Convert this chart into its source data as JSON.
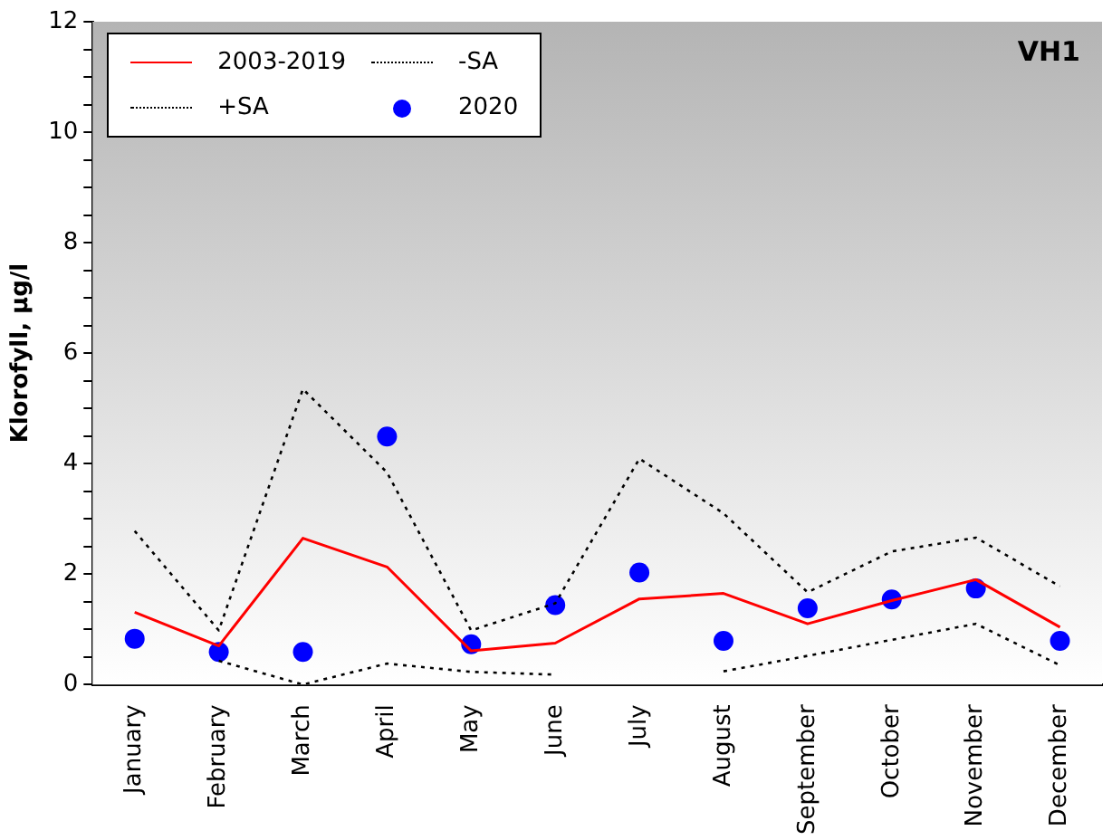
{
  "chart_data": {
    "type": "line",
    "ylabel": "Klorofyll, µg/l",
    "annotations": [
      "VH1"
    ],
    "categories": [
      "January",
      "February",
      "March",
      "April",
      "May",
      "June",
      "July",
      "August",
      "September",
      "October",
      "November",
      "December"
    ],
    "series": [
      {
        "name": "2003-2019",
        "color": "#ff0000",
        "line_style": "solid",
        "marker": "none",
        "values": [
          1.31,
          0.7,
          2.65,
          2.13,
          0.61,
          0.75,
          1.55,
          1.65,
          1.1,
          1.52,
          1.9,
          1.04
        ]
      },
      {
        "name": "-SA",
        "color": "#000000",
        "line_style": "dotted",
        "marker": "none",
        "values": [
          null,
          0.43,
          0,
          0.38,
          0.23,
          0.18,
          null,
          0.24,
          0.52,
          0.81,
          1.1,
          0.35
        ]
      },
      {
        "name": "+SA",
        "color": "#000000",
        "line_style": "dotted",
        "marker": "none",
        "values": [
          2.78,
          0.98,
          5.35,
          3.84,
          0.98,
          1.47,
          4.09,
          3.1,
          1.67,
          2.41,
          2.66,
          1.78
        ]
      },
      {
        "name": "2020",
        "type": "scatter",
        "color": "#0000ff",
        "marker": "circle",
        "values": [
          0.83,
          0.59,
          0.59,
          4.49,
          0.73,
          1.44,
          2.03,
          0.79,
          1.38,
          1.54,
          1.74,
          0.79
        ]
      }
    ],
    "ylim": [
      0,
      12
    ],
    "yticks": [
      0,
      {
        "value": 0.5,
        "label": null
      },
      {
        "value": 1,
        "label": null
      },
      {
        "value": 1.5,
        "label": null
      },
      2,
      {
        "value": 2.5,
        "label": null
      },
      {
        "value": 3,
        "label": null
      },
      {
        "value": 3.5,
        "label": null
      },
      4,
      {
        "value": 4.5,
        "label": null
      },
      {
        "value": 5,
        "label": null
      },
      {
        "value": 5.5,
        "label": null
      },
      6,
      {
        "value": 6.5,
        "label": null
      },
      {
        "value": 7,
        "label": null
      },
      {
        "value": 7.5,
        "label": null
      },
      8,
      {
        "value": 8.5,
        "label": null
      },
      {
        "value": 9,
        "label": null
      },
      {
        "value": 9.5,
        "label": null
      },
      10,
      {
        "value": 10.5,
        "label": null
      },
      {
        "value": 11,
        "label": null
      },
      {
        "value": 11.5,
        "label": null
      },
      12
    ],
    "grid": false,
    "legend": "top left"
  }
}
